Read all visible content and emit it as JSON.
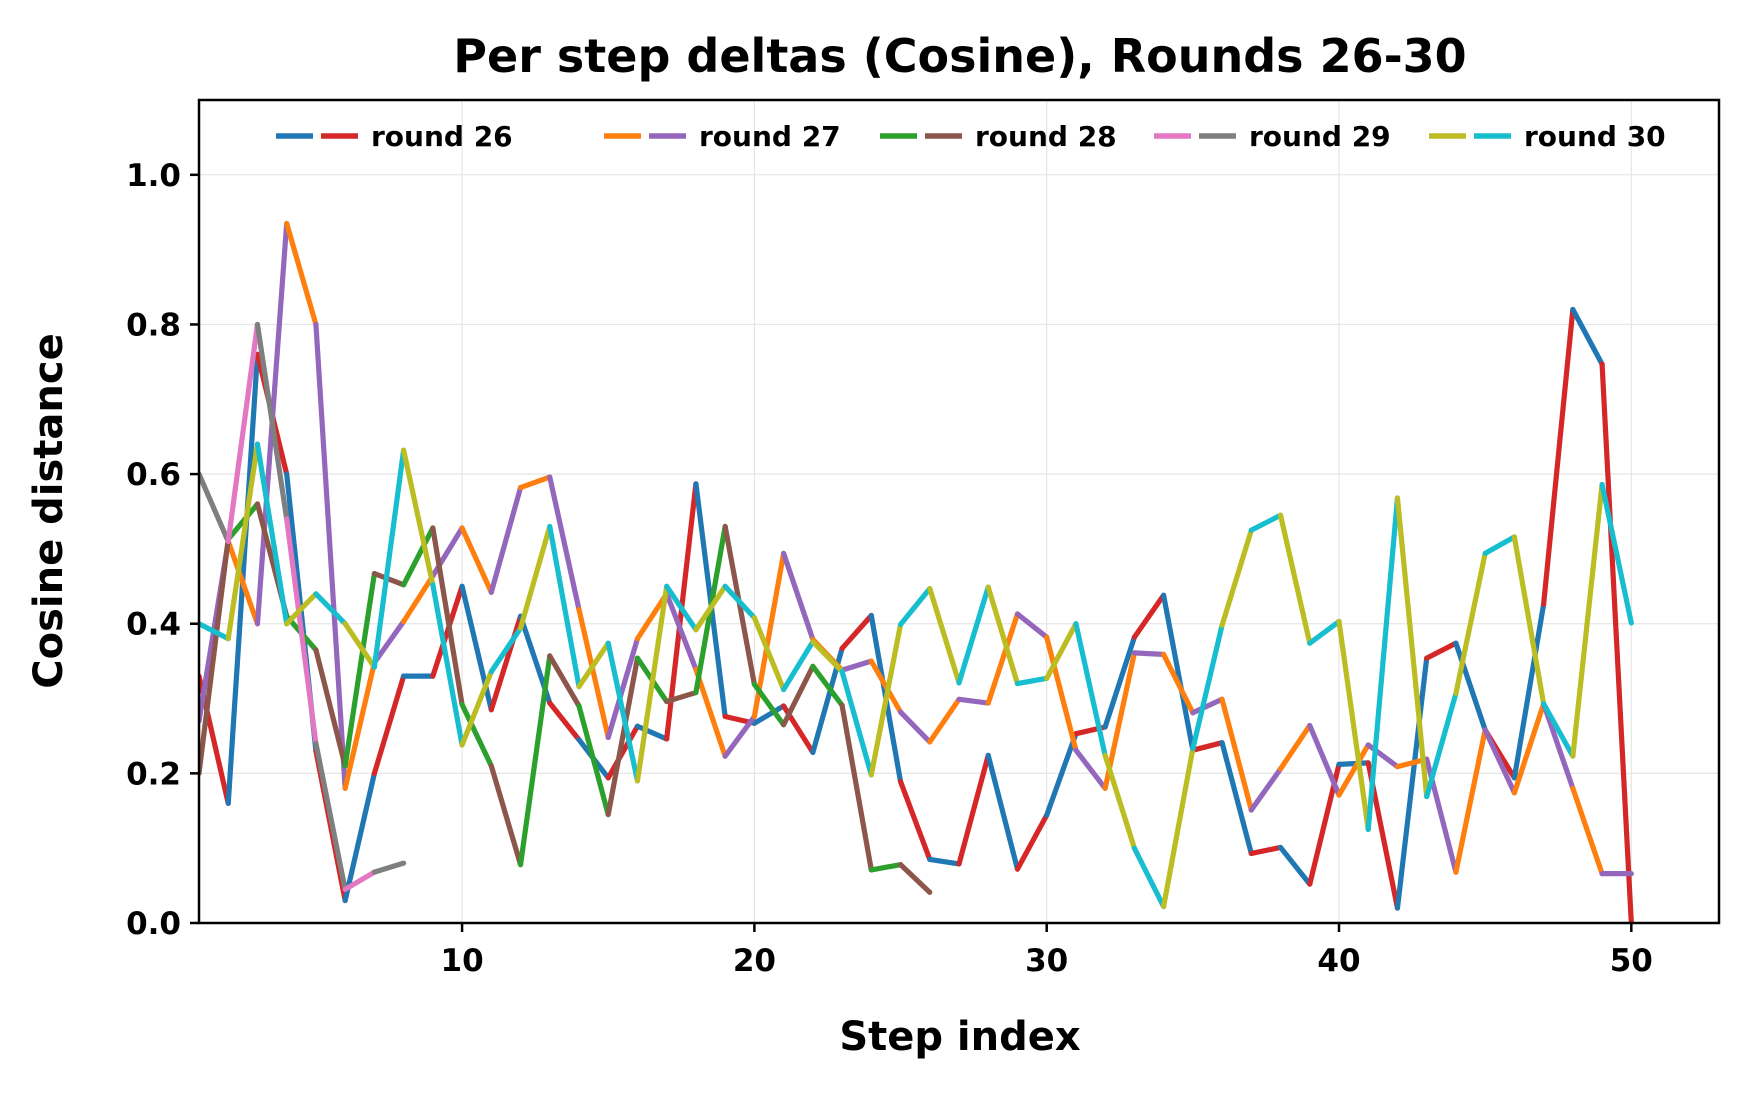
{
  "chart_data": {
    "type": "line",
    "title": "Per step deltas (Cosine), Rounds 26-30",
    "xlabel": "Step index",
    "ylabel": "Cosine distance",
    "xlim": [
      1,
      53
    ],
    "ylim": [
      0,
      1.1
    ],
    "xticks": [
      10,
      20,
      30,
      40,
      50
    ],
    "yticks": [
      "0.0",
      "0.2",
      "0.4",
      "0.6",
      "0.8",
      "1.0"
    ],
    "grid": true,
    "legend_position": "top-center",
    "series": [
      {
        "name": "round 26",
        "colors": [
          "#1f77b4",
          "#d62728"
        ],
        "x": [
          1,
          2,
          3,
          4,
          5,
          6,
          7,
          8,
          9,
          10,
          11,
          12,
          13,
          14,
          15,
          16,
          17,
          18,
          19,
          20,
          21,
          22,
          23,
          24,
          25,
          26,
          27,
          28,
          29,
          30,
          31,
          32,
          33,
          34,
          35,
          36,
          37,
          38,
          39,
          40,
          41,
          42,
          43,
          44,
          45,
          46,
          47,
          48,
          49,
          50
        ],
        "y": [
          0.33,
          0.16,
          0.76,
          0.6,
          0.23,
          0.03,
          0.2,
          0.33,
          0.33,
          0.45,
          0.285,
          0.41,
          0.294,
          0.245,
          0.194,
          0.263,
          0.246,
          0.587,
          0.276,
          0.267,
          0.29,
          0.228,
          0.367,
          0.411,
          0.189,
          0.085,
          0.079,
          0.224,
          0.072,
          0.144,
          0.253,
          0.262,
          0.382,
          0.438,
          0.231,
          0.241,
          0.093,
          0.101,
          0.052,
          0.212,
          0.214,
          0.02,
          0.354,
          0.374,
          0.258,
          0.194,
          0.426,
          0.82,
          0.747,
          0.0
        ]
      },
      {
        "name": "round 27",
        "colors": [
          "#ff7f0e",
          "#9467bd"
        ],
        "x": [
          1,
          2,
          3,
          4,
          5,
          6,
          7,
          8,
          9,
          10,
          11,
          12,
          13,
          14,
          15,
          16,
          17,
          18,
          19,
          20,
          21,
          22,
          23,
          24,
          25,
          26,
          27,
          28,
          29,
          30,
          31,
          32,
          33,
          34,
          35,
          36,
          37,
          38,
          39,
          40,
          41,
          42,
          43,
          44,
          45,
          46,
          47,
          48,
          49,
          50
        ],
        "y": [
          0.27,
          0.51,
          0.4,
          0.935,
          0.8,
          0.18,
          0.348,
          0.403,
          0.464,
          0.528,
          0.442,
          0.582,
          0.596,
          0.419,
          0.248,
          0.38,
          0.44,
          0.339,
          0.223,
          0.276,
          0.494,
          0.379,
          0.338,
          0.35,
          0.282,
          0.242,
          0.299,
          0.294,
          0.413,
          0.382,
          0.231,
          0.18,
          0.361,
          0.359,
          0.281,
          0.299,
          0.151,
          0.206,
          0.264,
          0.171,
          0.238,
          0.209,
          0.219,
          0.068,
          0.258,
          0.174,
          0.293,
          0.18,
          0.066,
          0.066
        ]
      },
      {
        "name": "round 28",
        "colors": [
          "#2ca02c",
          "#8c564b"
        ],
        "x": [
          1,
          2,
          3,
          4,
          5,
          6,
          7,
          8,
          9,
          10,
          11,
          12,
          13,
          14,
          15,
          16,
          17,
          18,
          19,
          20,
          21,
          22,
          23,
          24,
          25,
          26
        ],
        "y": [
          0.2,
          0.513,
          0.56,
          0.41,
          0.365,
          0.21,
          0.467,
          0.452,
          0.528,
          0.292,
          0.21,
          0.078,
          0.357,
          0.29,
          0.145,
          0.354,
          0.296,
          0.308,
          0.53,
          0.319,
          0.265,
          0.343,
          0.291,
          0.071,
          0.078,
          0.041
        ]
      },
      {
        "name": "round 29",
        "colors": [
          "#e377c2",
          "#7f7f7f"
        ],
        "x": [
          1,
          2,
          3,
          4,
          5,
          6,
          7,
          8
        ],
        "y": [
          0.6,
          0.51,
          0.8,
          0.54,
          0.24,
          0.045,
          0.068,
          0.08
        ]
      },
      {
        "name": "round 30",
        "colors": [
          "#bcbd22",
          "#17becf"
        ],
        "x": [
          1,
          2,
          3,
          4,
          5,
          6,
          7,
          8,
          9,
          10,
          11,
          12,
          13,
          14,
          15,
          16,
          17,
          18,
          19,
          20,
          21,
          22,
          23,
          24,
          25,
          26,
          27,
          28,
          29,
          30,
          31,
          32,
          33,
          34,
          35,
          36,
          37,
          38,
          39,
          40,
          41,
          42,
          43,
          44,
          45,
          46,
          47,
          48,
          49,
          50
        ],
        "y": [
          0.4,
          0.38,
          0.64,
          0.4,
          0.44,
          0.4,
          0.342,
          0.632,
          0.452,
          0.238,
          0.336,
          0.394,
          0.53,
          0.316,
          0.374,
          0.19,
          0.45,
          0.392,
          0.45,
          0.408,
          0.312,
          0.376,
          0.336,
          0.198,
          0.399,
          0.447,
          0.321,
          0.449,
          0.32,
          0.327,
          0.4,
          0.224,
          0.1,
          0.022,
          0.233,
          0.398,
          0.525,
          0.545,
          0.374,
          0.403,
          0.125,
          0.568,
          0.169,
          0.307,
          0.494,
          0.516,
          0.293,
          0.223,
          0.586,
          0.401
        ]
      }
    ]
  }
}
